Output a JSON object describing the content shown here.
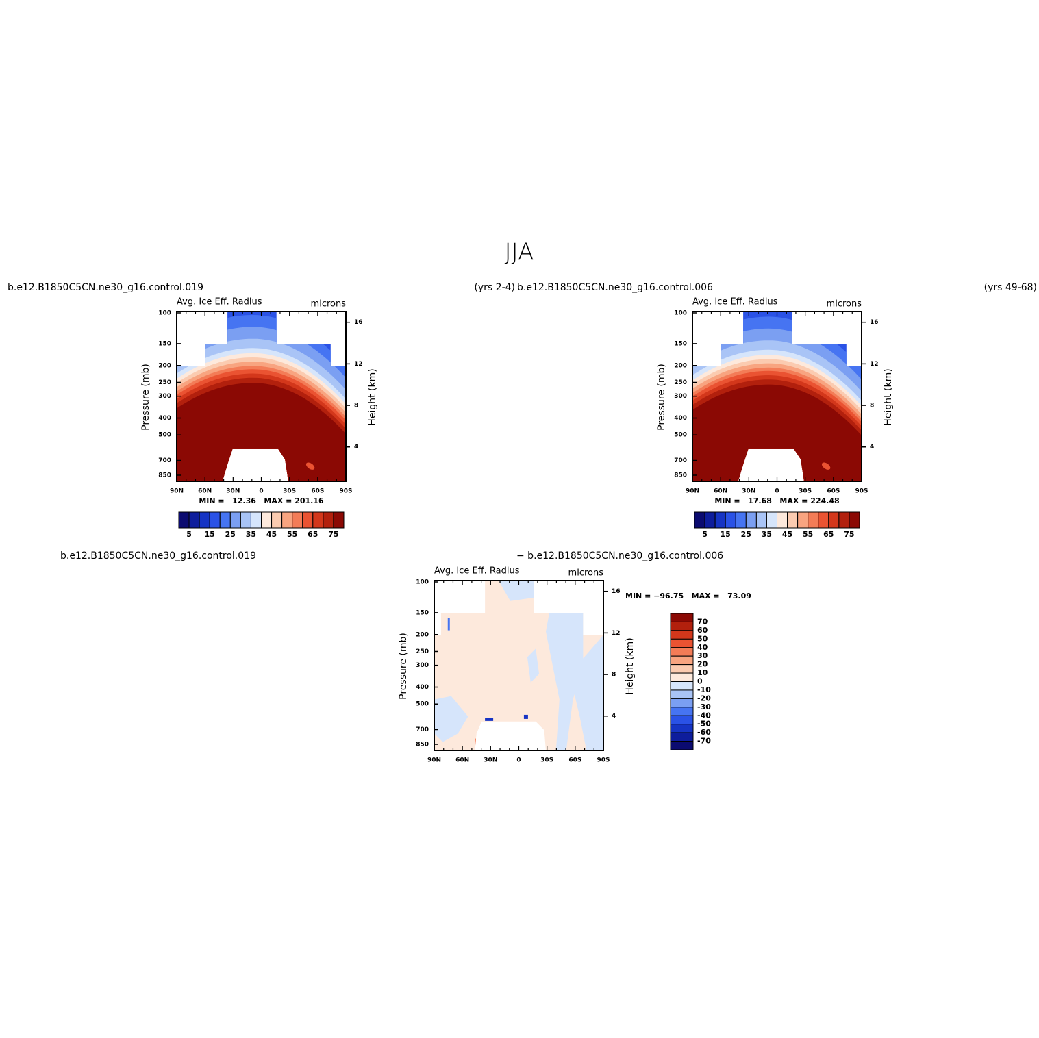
{
  "title": "JJA",
  "variable": "Avg. Ice Eff. Radius",
  "units": "microns",
  "ylabel": "Pressure (mb)",
  "y2label": "Height (km)",
  "pressure_ticks": [
    100,
    150,
    200,
    250,
    300,
    400,
    500,
    700,
    850
  ],
  "height_ticks": [
    4,
    8,
    12,
    16
  ],
  "lat_ticks": [
    "90N",
    "60N",
    "30N",
    "0",
    "30S",
    "60S",
    "90S"
  ],
  "panels": [
    {
      "left_string": "b.e12.B1850C5CN.ne30_g16.control.019",
      "right_string": "(yrs 2-4)",
      "stats": "MIN =   12.36   MAX = 201.16"
    },
    {
      "left_string": "b.e12.B1850C5CN.ne30_g16.control.006",
      "right_string": "(yrs 49-68)",
      "stats": "MIN =   17.68   MAX = 224.48"
    },
    {
      "left_string": "b.e12.B1850C5CN.ne30_g16.control.019",
      "center_string": "− b.e12.B1850C5CN.ne30_g16.control.006",
      "stats": "MIN = −96.75   MAX =   73.09"
    }
  ],
  "colorbar": {
    "labels": [
      5,
      15,
      25,
      35,
      45,
      55,
      65,
      75
    ],
    "colors": [
      "#0b0b70",
      "#0e1d9c",
      "#1634c4",
      "#2a52e6",
      "#4674f2",
      "#7b9ff2",
      "#a9c4f6",
      "#d6e5fb",
      "#fde9dc",
      "#fbcbb0",
      "#f8a480",
      "#f37c57",
      "#ea5332",
      "#d3371b",
      "#b2200d",
      "#8b0904"
    ]
  },
  "diff_colorbar": {
    "labels": [
      70,
      60,
      50,
      40,
      30,
      20,
      10,
      0,
      -10,
      -20,
      -30,
      -40,
      -50,
      -60,
      -70
    ],
    "colors": [
      "#8b0904",
      "#b2200d",
      "#d3371b",
      "#ea5332",
      "#f37c57",
      "#f8a480",
      "#fbcbb0",
      "#fde9dc",
      "#d6e5fb",
      "#a9c4f6",
      "#7b9ff2",
      "#4674f2",
      "#2a52e6",
      "#1634c4",
      "#0e1d9c",
      "#0b0b70"
    ]
  }
}
